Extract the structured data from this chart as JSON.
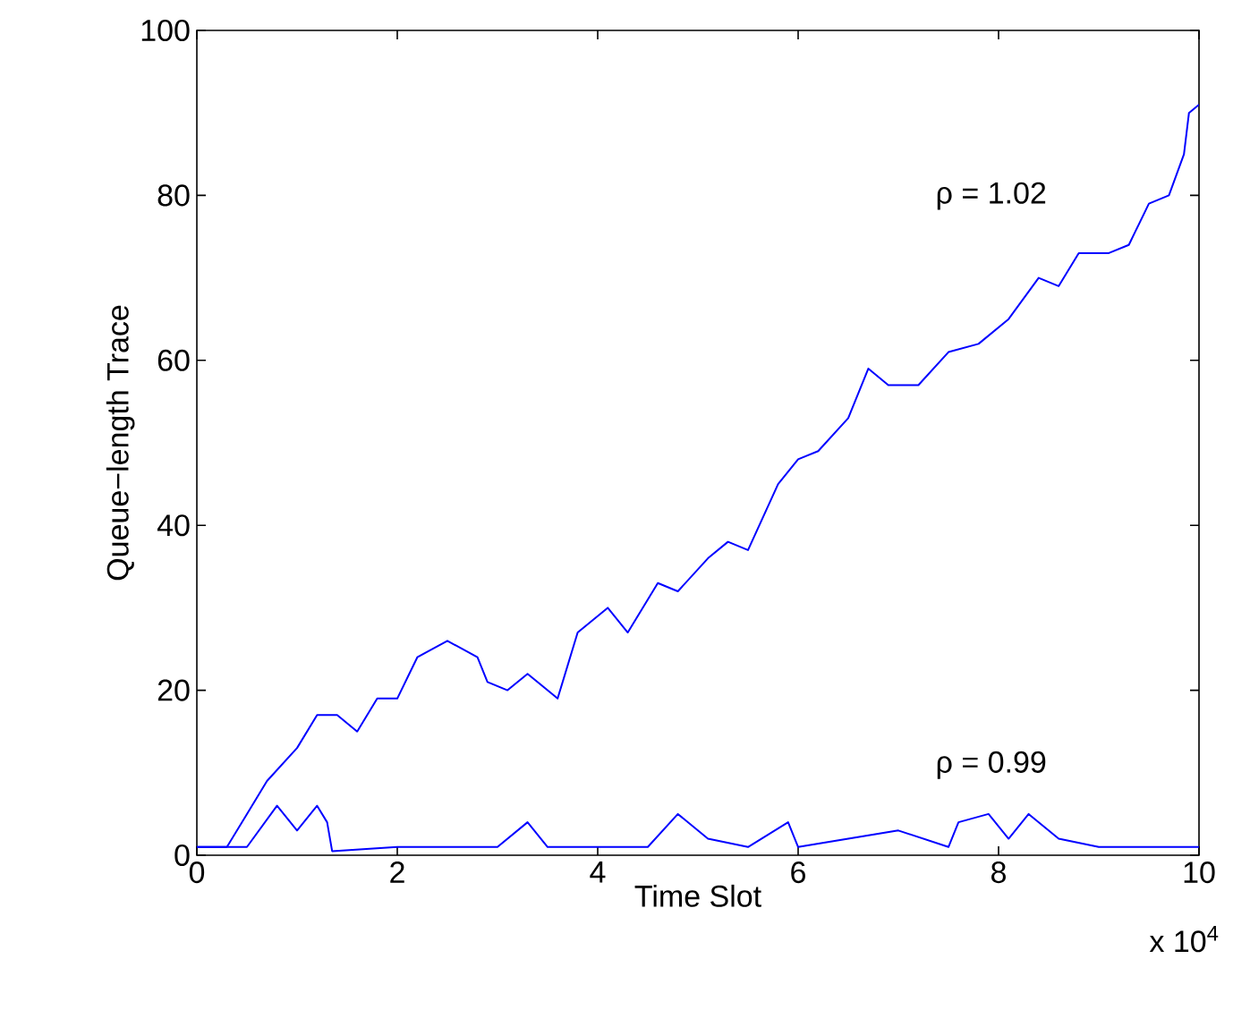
{
  "chart_data": {
    "type": "line",
    "xlabel": "Time Slot",
    "ylabel": "Queue−length Trace",
    "xlim": [
      0,
      10
    ],
    "xticks": [
      0,
      2,
      4,
      6,
      8,
      10
    ],
    "ylim": [
      0,
      100
    ],
    "yticks": [
      0,
      20,
      40,
      60,
      80,
      100
    ],
    "grid": false,
    "legend": false,
    "series": [
      {
        "name": "ρ = 1.02",
        "color": "#0000ff",
        "x": [
          0,
          0.3,
          0.5,
          0.7,
          1.0,
          1.2,
          1.4,
          1.6,
          1.8,
          2.0,
          2.2,
          2.5,
          2.8,
          2.9,
          3.1,
          3.3,
          3.6,
          3.8,
          4.1,
          4.3,
          4.6,
          4.8,
          5.1,
          5.3,
          5.5,
          5.8,
          6.0,
          6.2,
          6.5,
          6.7,
          6.9,
          7.2,
          7.5,
          7.8,
          8.1,
          8.4,
          8.6,
          8.8,
          9.1,
          9.3,
          9.5,
          9.7,
          9.85,
          9.9,
          10
        ],
        "values": [
          1,
          1,
          5,
          9,
          13,
          17,
          17,
          15,
          19,
          19,
          24,
          26,
          24,
          21,
          20,
          22,
          19,
          27,
          30,
          27,
          33,
          32,
          36,
          38,
          37,
          45,
          48,
          49,
          53,
          59,
          57,
          57,
          61,
          62,
          65,
          70,
          69,
          73,
          73,
          74,
          79,
          80,
          85,
          90,
          91
        ]
      },
      {
        "name": "ρ = 0.99",
        "color": "#0000ff",
        "x": [
          0,
          0.5,
          0.8,
          1.0,
          1.2,
          1.3,
          1.35,
          2,
          3,
          3.3,
          3.5,
          4.5,
          4.8,
          5.1,
          5.5,
          5.9,
          6.0,
          6.5,
          7.0,
          7.5,
          7.6,
          7.9,
          8.1,
          8.3,
          8.6,
          9,
          10
        ],
        "values": [
          1,
          1,
          6,
          3,
          6,
          4,
          0.5,
          1,
          1,
          4,
          1,
          1,
          5,
          2,
          1,
          4,
          1,
          2,
          3,
          1,
          4,
          5,
          2,
          5,
          2,
          1,
          1
        ]
      }
    ],
    "annotations": [
      "x 10$^{4}$"
    ]
  }
}
